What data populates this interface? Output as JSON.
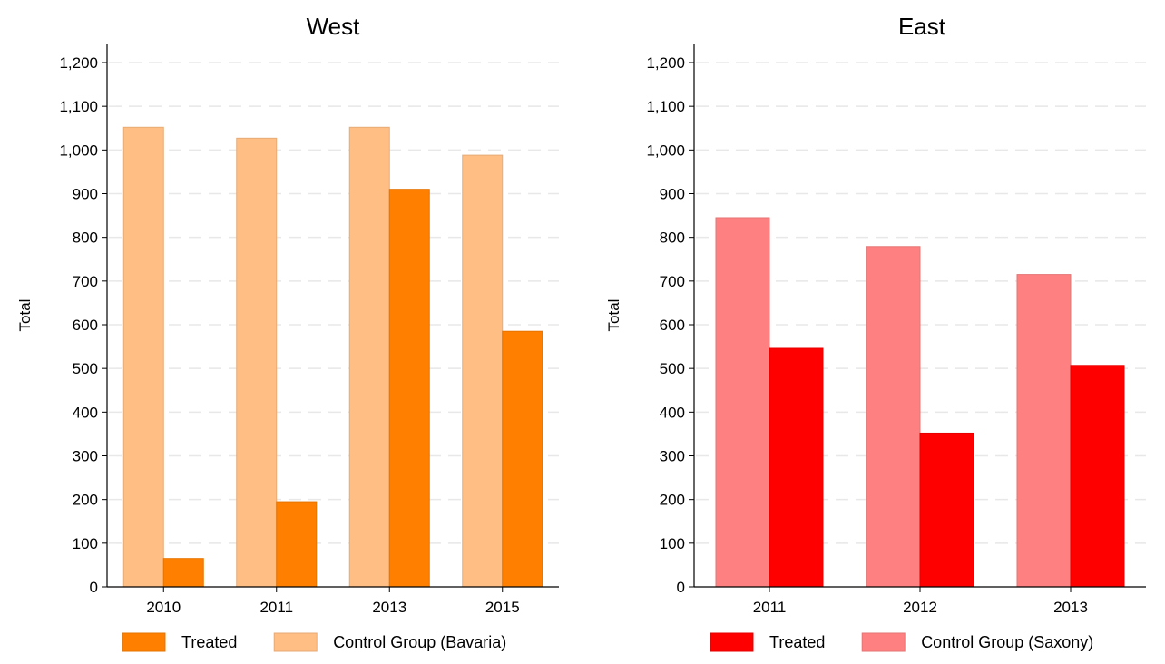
{
  "chart_data": [
    {
      "type": "bar",
      "title": "West",
      "ylabel": "Total",
      "xlabel": "",
      "ylim": [
        0,
        1200
      ],
      "yticks": [
        0,
        100,
        200,
        300,
        400,
        500,
        600,
        700,
        800,
        900,
        1000,
        1100,
        1200
      ],
      "ytick_labels": [
        "0",
        "100",
        "200",
        "300",
        "400",
        "500",
        "600",
        "700",
        "800",
        "900",
        "1,000",
        "1,100",
        "1,200"
      ],
      "grid": true,
      "legend_position": "bottom",
      "categories": [
        "2010",
        "2011",
        "2013",
        "2015"
      ],
      "series": [
        {
          "name": "Control Group (Bavaria)",
          "color": "#FFBE83",
          "values": [
            1052,
            1027,
            1052,
            988
          ]
        },
        {
          "name": "Treated",
          "color": "#FF8000",
          "values": [
            65,
            195,
            910,
            585
          ]
        }
      ],
      "legend": [
        {
          "label": "Treated",
          "color": "#FF8000"
        },
        {
          "label": "Control Group (Bavaria)",
          "color": "#FFBE83"
        }
      ]
    },
    {
      "type": "bar",
      "title": "East",
      "ylabel": "Total",
      "xlabel": "",
      "ylim": [
        0,
        1200
      ],
      "yticks": [
        0,
        100,
        200,
        300,
        400,
        500,
        600,
        700,
        800,
        900,
        1000,
        1100,
        1200
      ],
      "ytick_labels": [
        "0",
        "100",
        "200",
        "300",
        "400",
        "500",
        "600",
        "700",
        "800",
        "900",
        "1,000",
        "1,100",
        "1,200"
      ],
      "grid": true,
      "legend_position": "bottom",
      "categories": [
        "2011",
        "2012",
        "2013"
      ],
      "series": [
        {
          "name": "Control Group (Saxony)",
          "color": "#FF8080",
          "values": [
            845,
            779,
            715
          ]
        },
        {
          "name": "Treated",
          "color": "#FF0000",
          "values": [
            546,
            352,
            507
          ]
        }
      ],
      "legend": [
        {
          "label": "Treated",
          "color": "#FF0000"
        },
        {
          "label": "Control Group (Saxony)",
          "color": "#FF8080"
        }
      ]
    }
  ]
}
